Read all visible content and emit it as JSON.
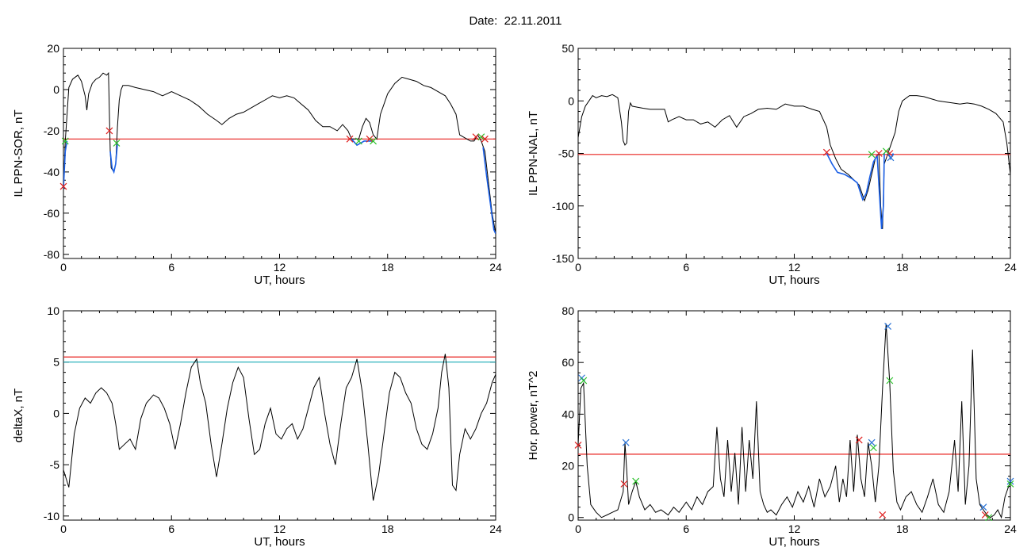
{
  "figure": {
    "title": "Date:  22.11.2011"
  },
  "colors": {
    "line": "#000000",
    "threshold_red": "#e8201e",
    "threshold_cyan": "#17a9b5",
    "highlight_blue": "#1a5fe6",
    "marker_red": "#e02020",
    "marker_green": "#2bc22b",
    "marker_blue": "#2a73d6"
  },
  "chart_data": [
    {
      "type": "line",
      "xlabel": "UT, hours",
      "ylabel": "IL PPN-SOR, nT",
      "xlim": [
        0,
        24
      ],
      "ylim": [
        -82,
        20
      ],
      "xticks": [
        0,
        6,
        12,
        18,
        24
      ],
      "yticks": [
        20,
        0,
        -20,
        -40,
        -60,
        -80
      ],
      "series": [
        {
          "x": [
            0,
            0.1,
            0.3,
            0.5,
            0.8,
            1.0,
            1.2,
            1.3,
            1.4,
            1.6,
            1.8,
            2.0,
            2.2,
            2.4,
            2.5,
            2.6,
            2.65,
            2.8,
            2.9,
            3.0,
            3.1,
            3.2,
            3.3,
            3.6,
            4.0,
            4.5,
            5.0,
            5.5,
            6.0,
            6.5,
            7.0,
            7.5,
            8.0,
            8.5,
            8.8,
            9.2,
            9.6,
            10.0,
            10.4,
            10.8,
            11.2,
            11.6,
            12.0,
            12.4,
            12.8,
            13.2,
            13.6,
            14.0,
            14.4,
            14.8,
            15.2,
            15.5,
            15.8,
            16.0,
            16.2,
            16.4,
            16.6,
            16.8,
            17.0,
            17.2,
            17.4,
            17.6,
            18.0,
            18.4,
            18.8,
            19.2,
            19.6,
            20.0,
            20.4,
            20.8,
            21.2,
            21.5,
            21.8,
            22.0,
            22.2,
            22.4,
            22.6,
            22.8,
            23.0,
            23.2,
            23.4,
            23.6,
            23.8,
            24.0
          ],
          "y": [
            -48,
            -25,
            1,
            5,
            7,
            4,
            -3,
            -10,
            -2,
            3,
            5,
            6,
            8,
            7,
            8,
            -30,
            -38,
            -40,
            -36,
            -18,
            -5,
            0,
            2,
            2,
            1,
            0,
            -1,
            -3,
            -1,
            -3,
            -5,
            -8,
            -12,
            -15,
            -17,
            -14,
            -12,
            -11,
            -9,
            -7,
            -5,
            -3,
            -4,
            -3,
            -4,
            -7,
            -10,
            -15,
            -18,
            -18,
            -20,
            -17,
            -20,
            -24,
            -24,
            -24,
            -18,
            -14,
            -16,
            -22,
            -24,
            -12,
            -2,
            3,
            6,
            5,
            4,
            2,
            1,
            -1,
            -3,
            -7,
            -12,
            -22,
            -23,
            -24,
            -25,
            -25,
            -22,
            -25,
            -30,
            -45,
            -60,
            -70
          ]
        }
      ],
      "thresholds": [
        {
          "y": -24,
          "color": "#e8201e"
        }
      ],
      "highlights": [
        {
          "x": [
            0,
            0.1,
            0.2
          ],
          "y": [
            -48,
            -30,
            -25
          ]
        },
        {
          "x": [
            2.6,
            2.7,
            2.8,
            2.9,
            3.0
          ],
          "y": [
            -30,
            -38,
            -40,
            -36,
            -26
          ]
        },
        {
          "x": [
            16.0,
            16.3,
            16.7,
            17.2
          ],
          "y": [
            -24,
            -27,
            -25,
            -25
          ]
        },
        {
          "x": [
            23.3,
            23.5,
            23.7,
            23.9,
            24.0
          ],
          "y": [
            -28,
            -42,
            -55,
            -68,
            -70
          ]
        }
      ],
      "markers": [
        {
          "x": 0.0,
          "y": -47,
          "color": "#e02020"
        },
        {
          "x": 0.1,
          "y": -25,
          "color": "#2bc22b"
        },
        {
          "x": 2.55,
          "y": -20,
          "color": "#e02020"
        },
        {
          "x": 2.95,
          "y": -26,
          "color": "#2bc22b"
        },
        {
          "x": 15.9,
          "y": -24,
          "color": "#e02020"
        },
        {
          "x": 16.4,
          "y": -25,
          "color": "#2bc22b"
        },
        {
          "x": 17.0,
          "y": -24,
          "color": "#e02020"
        },
        {
          "x": 17.2,
          "y": -25,
          "color": "#2bc22b"
        },
        {
          "x": 22.9,
          "y": -23,
          "color": "#e02020"
        },
        {
          "x": 23.2,
          "y": -23,
          "color": "#2bc22b"
        },
        {
          "x": 23.4,
          "y": -24,
          "color": "#e02020"
        }
      ]
    },
    {
      "type": "line",
      "xlabel": "UT, hours",
      "ylabel": "IL PPN-NAL, nT",
      "xlim": [
        0,
        24
      ],
      "ylim": [
        -150,
        50
      ],
      "xticks": [
        0,
        6,
        12,
        18,
        24
      ],
      "yticks": [
        50,
        0,
        -50,
        -100,
        -150
      ],
      "series": [
        {
          "x": [
            0,
            0.2,
            0.4,
            0.6,
            0.8,
            1.0,
            1.3,
            1.6,
            1.9,
            2.2,
            2.4,
            2.5,
            2.6,
            2.7,
            2.8,
            2.9,
            3.0,
            3.3,
            3.6,
            4.0,
            4.4,
            4.8,
            5.0,
            5.2,
            5.6,
            6.0,
            6.4,
            6.8,
            7.2,
            7.6,
            8.0,
            8.4,
            8.8,
            9.2,
            9.6,
            10.0,
            10.5,
            11.0,
            11.5,
            12.0,
            12.5,
            13.0,
            13.4,
            13.8,
            14.0,
            14.3,
            14.6,
            15.0,
            15.3,
            15.6,
            15.9,
            16.1,
            16.3,
            16.5,
            16.7,
            16.8,
            16.9,
            17.0,
            17.2,
            17.4,
            17.6,
            17.8,
            18.0,
            18.4,
            18.8,
            19.2,
            19.6,
            20.0,
            20.4,
            20.8,
            21.2,
            21.6,
            22.0,
            22.4,
            22.8,
            23.2,
            23.6,
            23.8,
            24.0
          ],
          "y": [
            -35,
            -15,
            -5,
            0,
            5,
            3,
            5,
            4,
            6,
            3,
            -20,
            -38,
            -42,
            -40,
            -10,
            -2,
            -5,
            -6,
            -7,
            -8,
            -8,
            -8,
            -20,
            -18,
            -15,
            -18,
            -18,
            -22,
            -20,
            -25,
            -18,
            -14,
            -25,
            -15,
            -12,
            -8,
            -7,
            -8,
            -3,
            -5,
            -5,
            -8,
            -10,
            -25,
            -42,
            -55,
            -65,
            -70,
            -75,
            -80,
            -95,
            -85,
            -70,
            -55,
            -50,
            -100,
            -122,
            -60,
            -50,
            -40,
            -30,
            -10,
            0,
            5,
            5,
            4,
            2,
            0,
            -1,
            -2,
            -3,
            -2,
            -3,
            -5,
            -8,
            -12,
            -20,
            -40,
            -70
          ]
        }
      ],
      "thresholds": [
        {
          "y": -51,
          "color": "#e8201e"
        }
      ],
      "highlights": [
        {
          "x": [
            13.8,
            14.1,
            14.4,
            14.8,
            15.2,
            15.5,
            15.8,
            16.0,
            16.2,
            16.4,
            16.6,
            16.75,
            16.85,
            16.95,
            17.0
          ],
          "y": [
            -50,
            -60,
            -68,
            -70,
            -74,
            -78,
            -94,
            -88,
            -72,
            -58,
            -52,
            -95,
            -122,
            -100,
            -50
          ]
        },
        {
          "x": [
            17.2,
            17.35,
            17.5
          ],
          "y": [
            -48,
            -55,
            -50
          ]
        }
      ],
      "markers": [
        {
          "x": 13.8,
          "y": -49,
          "color": "#e02020"
        },
        {
          "x": 16.3,
          "y": -51,
          "color": "#2bc22b"
        },
        {
          "x": 16.7,
          "y": -50,
          "color": "#e02020"
        },
        {
          "x": 17.1,
          "y": -48,
          "color": "#2bc22b"
        },
        {
          "x": 17.3,
          "y": -50,
          "color": "#e02020"
        },
        {
          "x": 17.35,
          "y": -54,
          "color": "#2a73d6"
        }
      ]
    },
    {
      "type": "line",
      "xlabel": "UT, hours",
      "ylabel": "deltaX, nT",
      "xlim": [
        0,
        24
      ],
      "ylim": [
        -10.4,
        10
      ],
      "xticks": [
        0,
        6,
        12,
        18,
        24
      ],
      "yticks": [
        10,
        5,
        0,
        -5,
        -10
      ],
      "series": [
        {
          "x": [
            0,
            0.3,
            0.6,
            0.9,
            1.2,
            1.5,
            1.8,
            2.1,
            2.4,
            2.7,
            2.9,
            3.1,
            3.4,
            3.7,
            4.0,
            4.3,
            4.6,
            5.0,
            5.3,
            5.6,
            5.9,
            6.2,
            6.5,
            6.8,
            7.1,
            7.4,
            7.6,
            7.9,
            8.2,
            8.5,
            8.8,
            9.1,
            9.4,
            9.7,
            10.0,
            10.3,
            10.6,
            10.9,
            11.2,
            11.5,
            11.8,
            12.1,
            12.4,
            12.7,
            13.0,
            13.3,
            13.6,
            13.9,
            14.2,
            14.5,
            14.8,
            15.1,
            15.4,
            15.7,
            16.0,
            16.3,
            16.6,
            16.9,
            17.2,
            17.5,
            17.8,
            18.1,
            18.4,
            18.7,
            19.0,
            19.3,
            19.6,
            19.9,
            20.2,
            20.5,
            20.8,
            21.0,
            21.2,
            21.4,
            21.6,
            21.8,
            22.0,
            22.3,
            22.6,
            22.9,
            23.2,
            23.5,
            23.8,
            24.0
          ],
          "y": [
            -5.5,
            -7.2,
            -2.0,
            0.5,
            1.5,
            1.0,
            2.0,
            2.5,
            2.0,
            1.0,
            -1.0,
            -3.5,
            -3.0,
            -2.5,
            -3.5,
            -0.5,
            1.0,
            1.8,
            1.5,
            0.5,
            -1.0,
            -3.5,
            -1.0,
            2.0,
            4.5,
            5.3,
            3.0,
            1.0,
            -3.0,
            -6.2,
            -3.0,
            0.5,
            3.0,
            4.5,
            3.5,
            -0.5,
            -4.0,
            -3.5,
            -1.0,
            0.5,
            -2.0,
            -2.5,
            -1.5,
            -1.0,
            -2.5,
            -1.5,
            0.5,
            2.5,
            3.5,
            0.0,
            -3.0,
            -5.0,
            -1.0,
            2.5,
            3.5,
            5.3,
            2.0,
            -3.0,
            -8.5,
            -6.0,
            -2.0,
            2.0,
            4.0,
            3.5,
            2.0,
            1.0,
            -1.5,
            -3.0,
            -3.5,
            -2.0,
            0.5,
            4.0,
            5.8,
            2.5,
            -7.0,
            -7.5,
            -4.0,
            -1.5,
            -2.5,
            -1.5,
            0.0,
            1.0,
            3.0,
            3.8
          ]
        }
      ],
      "thresholds": [
        {
          "y": 5.5,
          "color": "#e8201e"
        },
        {
          "y": 5.0,
          "color": "#17a9b5"
        }
      ],
      "highlights": [],
      "markers": []
    },
    {
      "type": "line",
      "xlabel": "UT, hours",
      "ylabel": "Hor. power, nT^2",
      "xlim": [
        0,
        24
      ],
      "ylim": [
        -1,
        80
      ],
      "xticks": [
        0,
        6,
        12,
        18,
        24
      ],
      "yticks": [
        80,
        60,
        40,
        20,
        0
      ],
      "series": [
        {
          "x": [
            0,
            0.15,
            0.3,
            0.5,
            0.7,
            1.0,
            1.3,
            1.6,
            1.9,
            2.2,
            2.5,
            2.6,
            2.7,
            2.8,
            3.0,
            3.2,
            3.4,
            3.7,
            4.0,
            4.3,
            4.6,
            5.0,
            5.3,
            5.6,
            6.0,
            6.3,
            6.6,
            6.9,
            7.2,
            7.5,
            7.7,
            7.9,
            8.1,
            8.3,
            8.5,
            8.7,
            8.9,
            9.1,
            9.3,
            9.5,
            9.7,
            9.9,
            10.1,
            10.3,
            10.5,
            10.7,
            11.0,
            11.3,
            11.6,
            11.9,
            12.2,
            12.5,
            12.8,
            13.1,
            13.4,
            13.7,
            14.0,
            14.3,
            14.5,
            14.7,
            14.9,
            15.1,
            15.3,
            15.5,
            15.7,
            15.9,
            16.1,
            16.3,
            16.5,
            16.7,
            16.9,
            17.1,
            17.3,
            17.5,
            17.7,
            17.9,
            18.2,
            18.5,
            18.8,
            19.1,
            19.4,
            19.7,
            20.0,
            20.3,
            20.6,
            20.9,
            21.1,
            21.3,
            21.5,
            21.7,
            21.9,
            22.1,
            22.3,
            22.5,
            22.7,
            22.9,
            23.1,
            23.3,
            23.5,
            23.7,
            23.9,
            24.0
          ],
          "y": [
            28,
            50,
            52,
            20,
            5,
            2,
            0,
            1,
            2,
            3,
            10,
            29,
            18,
            5,
            10,
            14,
            8,
            3,
            5,
            2,
            3,
            1,
            4,
            2,
            6,
            3,
            8,
            5,
            10,
            12,
            35,
            15,
            8,
            30,
            10,
            25,
            5,
            35,
            10,
            30,
            15,
            45,
            10,
            5,
            2,
            3,
            1,
            5,
            8,
            4,
            10,
            6,
            12,
            4,
            15,
            8,
            12,
            20,
            6,
            15,
            8,
            30,
            10,
            32,
            15,
            8,
            29,
            20,
            6,
            20,
            50,
            75,
            52,
            18,
            6,
            3,
            8,
            10,
            5,
            2,
            8,
            15,
            5,
            2,
            10,
            30,
            10,
            45,
            5,
            20,
            65,
            15,
            5,
            3,
            1,
            0,
            1,
            3,
            0,
            8,
            12,
            14
          ]
        }
      ],
      "thresholds": [
        {
          "y": 24.5,
          "color": "#e8201e"
        }
      ],
      "highlights": [],
      "markers": [
        {
          "x": 0.0,
          "y": 28,
          "color": "#e02020"
        },
        {
          "x": 0.2,
          "y": 54,
          "color": "#2a73d6"
        },
        {
          "x": 0.3,
          "y": 53,
          "color": "#2bc22b"
        },
        {
          "x": 2.55,
          "y": 13,
          "color": "#e02020"
        },
        {
          "x": 2.65,
          "y": 29,
          "color": "#2a73d6"
        },
        {
          "x": 3.2,
          "y": 14,
          "color": "#2bc22b"
        },
        {
          "x": 15.6,
          "y": 30,
          "color": "#e02020"
        },
        {
          "x": 16.3,
          "y": 29,
          "color": "#2a73d6"
        },
        {
          "x": 16.4,
          "y": 27,
          "color": "#2bc22b"
        },
        {
          "x": 16.9,
          "y": 1,
          "color": "#e02020"
        },
        {
          "x": 17.2,
          "y": 74,
          "color": "#2a73d6"
        },
        {
          "x": 17.3,
          "y": 53,
          "color": "#2bc22b"
        },
        {
          "x": 22.5,
          "y": 4,
          "color": "#2a73d6"
        },
        {
          "x": 22.6,
          "y": 1,
          "color": "#e02020"
        },
        {
          "x": 22.8,
          "y": 0,
          "color": "#2bc22b"
        },
        {
          "x": 24.0,
          "y": 14,
          "color": "#2a73d6"
        },
        {
          "x": 24.0,
          "y": 13,
          "color": "#2bc22b"
        }
      ]
    }
  ]
}
